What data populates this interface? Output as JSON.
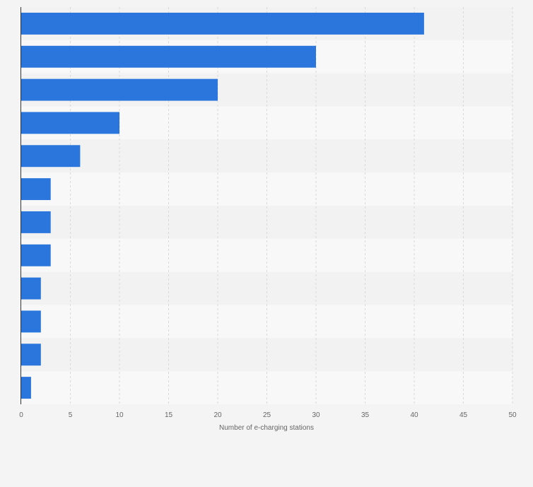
{
  "chart_data": {
    "type": "bar",
    "orientation": "horizontal",
    "categories": [
      "",
      "",
      "",
      "",
      "",
      "",
      "",
      "",
      "",
      "",
      "",
      ""
    ],
    "values": [
      41,
      30,
      20,
      10,
      6,
      3,
      3,
      3,
      2,
      2,
      2,
      1
    ],
    "xlabel": "Number of e-charging stations",
    "ylabel": "",
    "xlim": [
      0,
      50
    ],
    "xticks": [
      0,
      5,
      10,
      15,
      20,
      25,
      30,
      35,
      40,
      45,
      50
    ],
    "grid": "vertical dashed",
    "bar_color": "#2a76dc",
    "band_colors": [
      "#f2f2f2",
      "#f8f8f8"
    ],
    "legend": "none"
  }
}
